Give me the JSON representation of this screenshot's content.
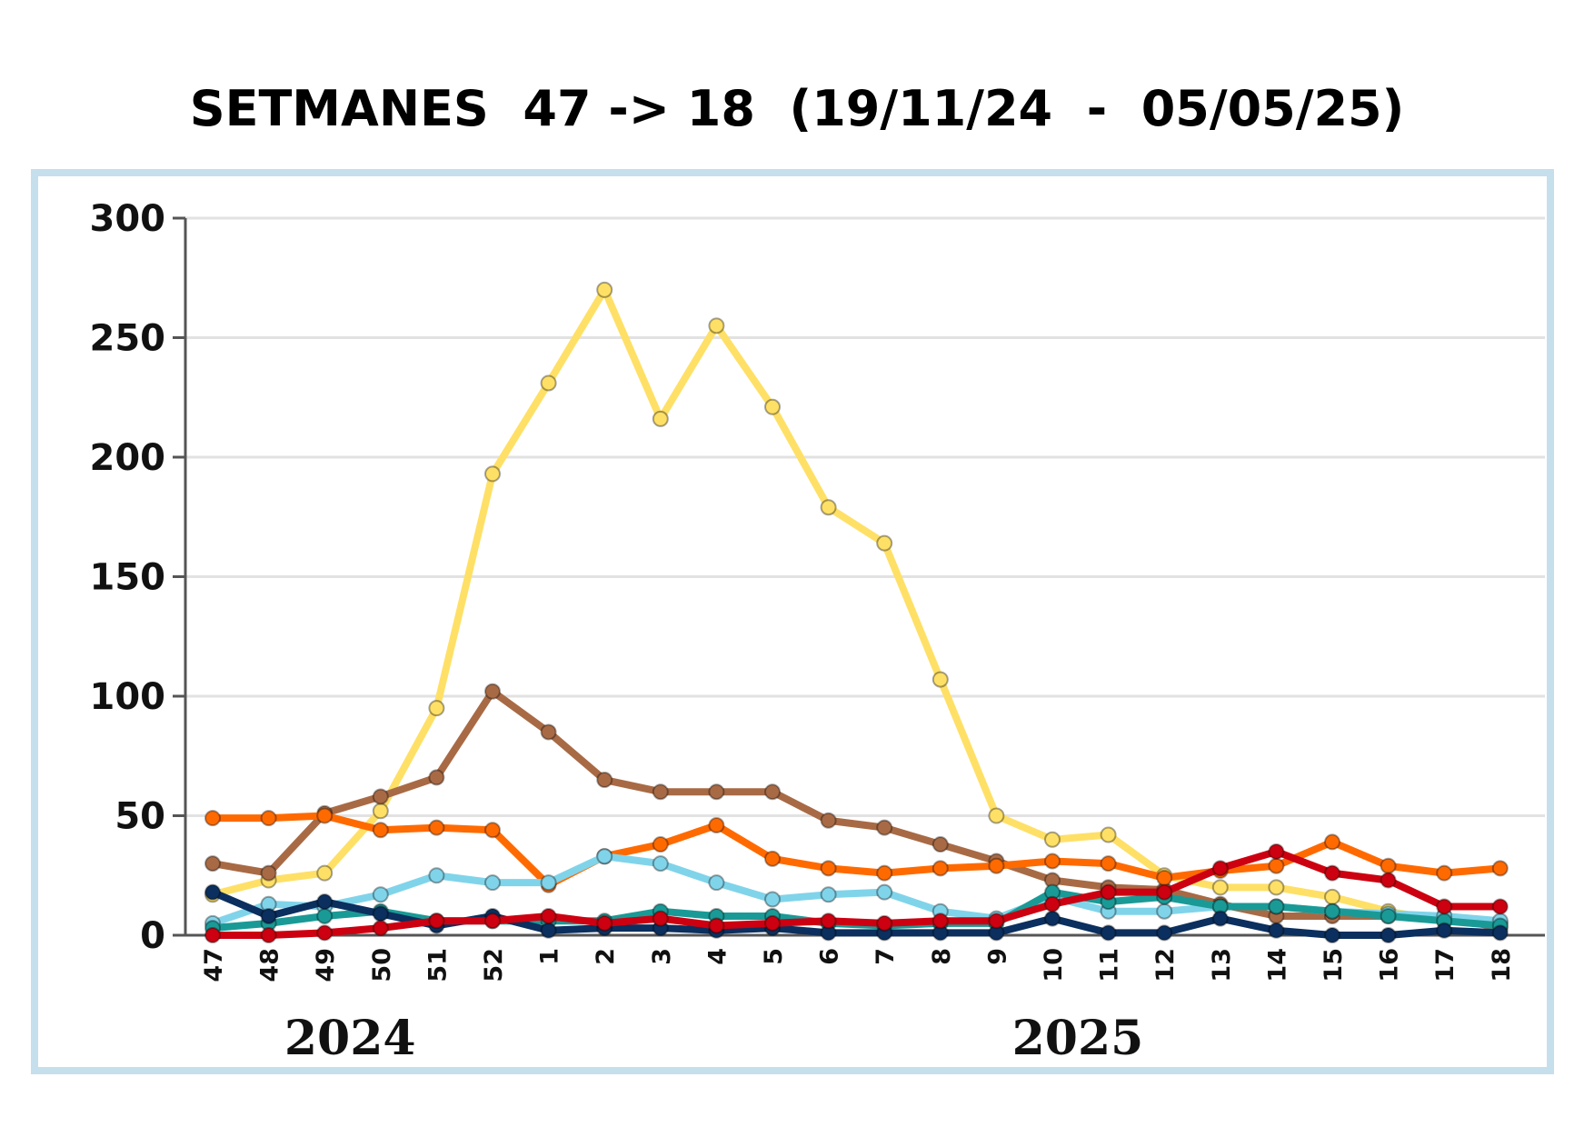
{
  "chart_data": {
    "type": "line",
    "title": "SETMANES  47 -> 18  (19/11/24  -  05/05/25)",
    "xlabel": "",
    "ylabel": "",
    "ylim": [
      0,
      300
    ],
    "yticks": [
      0,
      50,
      100,
      150,
      200,
      250,
      300
    ],
    "grid": true,
    "categories": [
      "47",
      "48",
      "49",
      "50",
      "51",
      "52",
      "1",
      "2",
      "3",
      "4",
      "5",
      "6",
      "7",
      "8",
      "9",
      "10",
      "11",
      "12",
      "13",
      "14",
      "15",
      "16",
      "17",
      "18"
    ],
    "year_labels": [
      {
        "label": "2024",
        "category": "49"
      },
      {
        "label": "2025",
        "category": "10"
      }
    ],
    "series": [
      {
        "color": "#ffe066",
        "values": [
          17,
          23,
          26,
          52,
          95,
          193,
          231,
          270,
          216,
          255,
          221,
          179,
          164,
          107,
          50,
          40,
          42,
          25,
          20,
          20,
          16,
          10,
          6,
          5
        ]
      },
      {
        "color": "#a86a45",
        "values": [
          30,
          26,
          51,
          58,
          66,
          102,
          85,
          65,
          60,
          60,
          60,
          48,
          45,
          38,
          31,
          23,
          20,
          19,
          13,
          8,
          8,
          8,
          8,
          3
        ]
      },
      {
        "color": "#ff6a00",
        "values": [
          49,
          49,
          50,
          44,
          45,
          44,
          21,
          33,
          38,
          46,
          32,
          28,
          26,
          28,
          29,
          31,
          30,
          24,
          27,
          29,
          39,
          29,
          26,
          28
        ]
      },
      {
        "color": "#80d4ea",
        "values": [
          5,
          13,
          12,
          17,
          25,
          22,
          22,
          33,
          30,
          22,
          15,
          17,
          18,
          10,
          7,
          16,
          10,
          10,
          12,
          12,
          10,
          9,
          8,
          6
        ]
      },
      {
        "color": "#1a9a96",
        "values": [
          3,
          5,
          8,
          10,
          6,
          6,
          6,
          6,
          10,
          8,
          8,
          5,
          4,
          5,
          5,
          18,
          14,
          16,
          12,
          12,
          10,
          8,
          6,
          4
        ]
      },
      {
        "color": "#0b2f5e",
        "values": [
          18,
          8,
          14,
          9,
          4,
          8,
          2,
          3,
          3,
          2,
          3,
          1,
          1,
          1,
          1,
          7,
          1,
          1,
          7,
          2,
          0,
          0,
          2,
          1
        ]
      },
      {
        "color": "#cc0010",
        "values": [
          0,
          0,
          1,
          3,
          6,
          6,
          8,
          5,
          7,
          4,
          5,
          6,
          5,
          6,
          6,
          13,
          18,
          18,
          28,
          35,
          26,
          23,
          12,
          12
        ]
      }
    ]
  }
}
